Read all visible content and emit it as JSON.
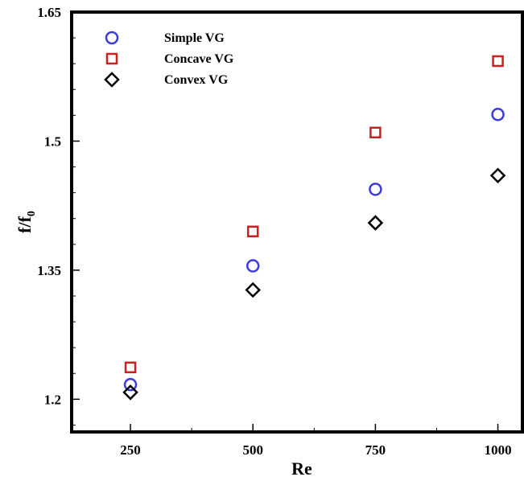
{
  "chart_data": {
    "type": "scatter",
    "x": [
      250,
      500,
      750,
      1000
    ],
    "series": [
      {
        "name": "Simple VG",
        "marker": "circle",
        "color": "#3b3bdc",
        "values": [
          1.217,
          1.355,
          1.444,
          1.531
        ]
      },
      {
        "name": "Concave VG",
        "marker": "square",
        "color": "#cc1f1f",
        "values": [
          1.237,
          1.395,
          1.51,
          1.593
        ]
      },
      {
        "name": "Convex VG",
        "marker": "diamond",
        "color": "#000000",
        "values": [
          1.208,
          1.327,
          1.405,
          1.46
        ]
      }
    ],
    "xlabel": "Re",
    "ylabel": {
      "main": "f/f",
      "sub": "0"
    },
    "xticks": [
      "250",
      "500",
      "750",
      "1000"
    ],
    "yticks": [
      "1.2",
      "1.35",
      "1.5",
      "1.65"
    ],
    "xlim": [
      130,
      1050
    ],
    "ylim": [
      1.162,
      1.65
    ],
    "legend_position": "top-left",
    "grid": false
  }
}
